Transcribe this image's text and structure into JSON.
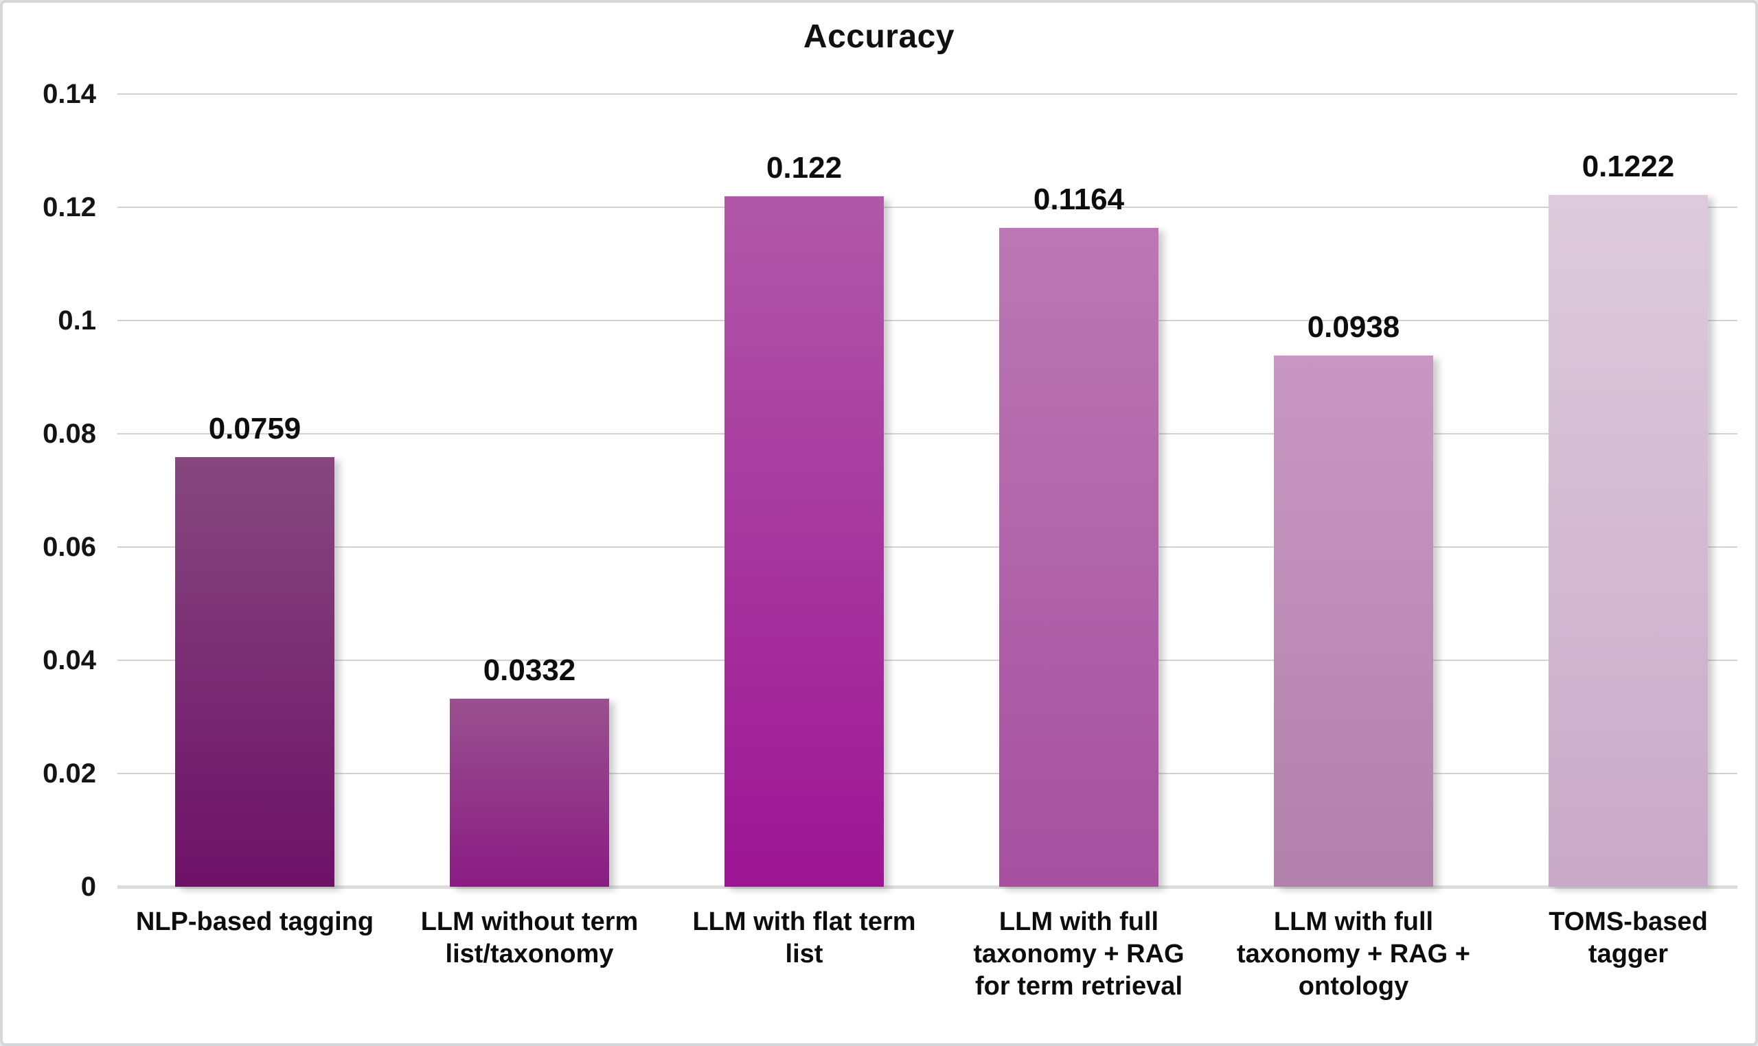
{
  "chart_data": {
    "type": "bar",
    "title": "Accuracy",
    "categories": [
      "NLP-based tagging",
      "LLM without term\nlist/taxonomy",
      "LLM with flat term\nlist",
      "LLM with full\ntaxonomy + RAG\nfor term retrieval",
      "LLM with full\ntaxonomy + RAG +\nontology",
      "TOMS-based\ntagger"
    ],
    "values": [
      0.0759,
      0.0332,
      0.122,
      0.1164,
      0.0938,
      0.1222
    ],
    "value_labels": [
      "0.0759",
      "0.0332",
      "0.122",
      "0.1164",
      "0.0938",
      "0.1222"
    ],
    "bar_colors": [
      {
        "top": "#86487f",
        "bottom": "#6d1167"
      },
      {
        "top": "#99518f",
        "bottom": "#8a1c83"
      },
      {
        "top": "#b058a8",
        "bottom": "#9d1594"
      },
      {
        "top": "#bb78b4",
        "bottom": "#a6509f"
      },
      {
        "top": "#c997c3",
        "bottom": "#b181ab"
      },
      {
        "top": "#ddcbdc",
        "bottom": "#c9a9c8"
      }
    ],
    "xlabel": "",
    "ylabel": "",
    "ylim": [
      0,
      0.14
    ],
    "y_tick_labels": [
      "0",
      "0.02",
      "0.04",
      "0.06",
      "0.08",
      "0.1",
      "0.12",
      "0.14"
    ],
    "y_tick_values": [
      0,
      0.02,
      0.04,
      0.06,
      0.08,
      0.1,
      0.12,
      0.14
    ],
    "grid": "horizontal",
    "legend_position": "none",
    "gridline_color": "#d2d2d2",
    "baseline_color": "#dcdcdc",
    "text_color": "#111111",
    "background_color": "#ffffff",
    "frame_border_color": "#d6d7d8"
  }
}
